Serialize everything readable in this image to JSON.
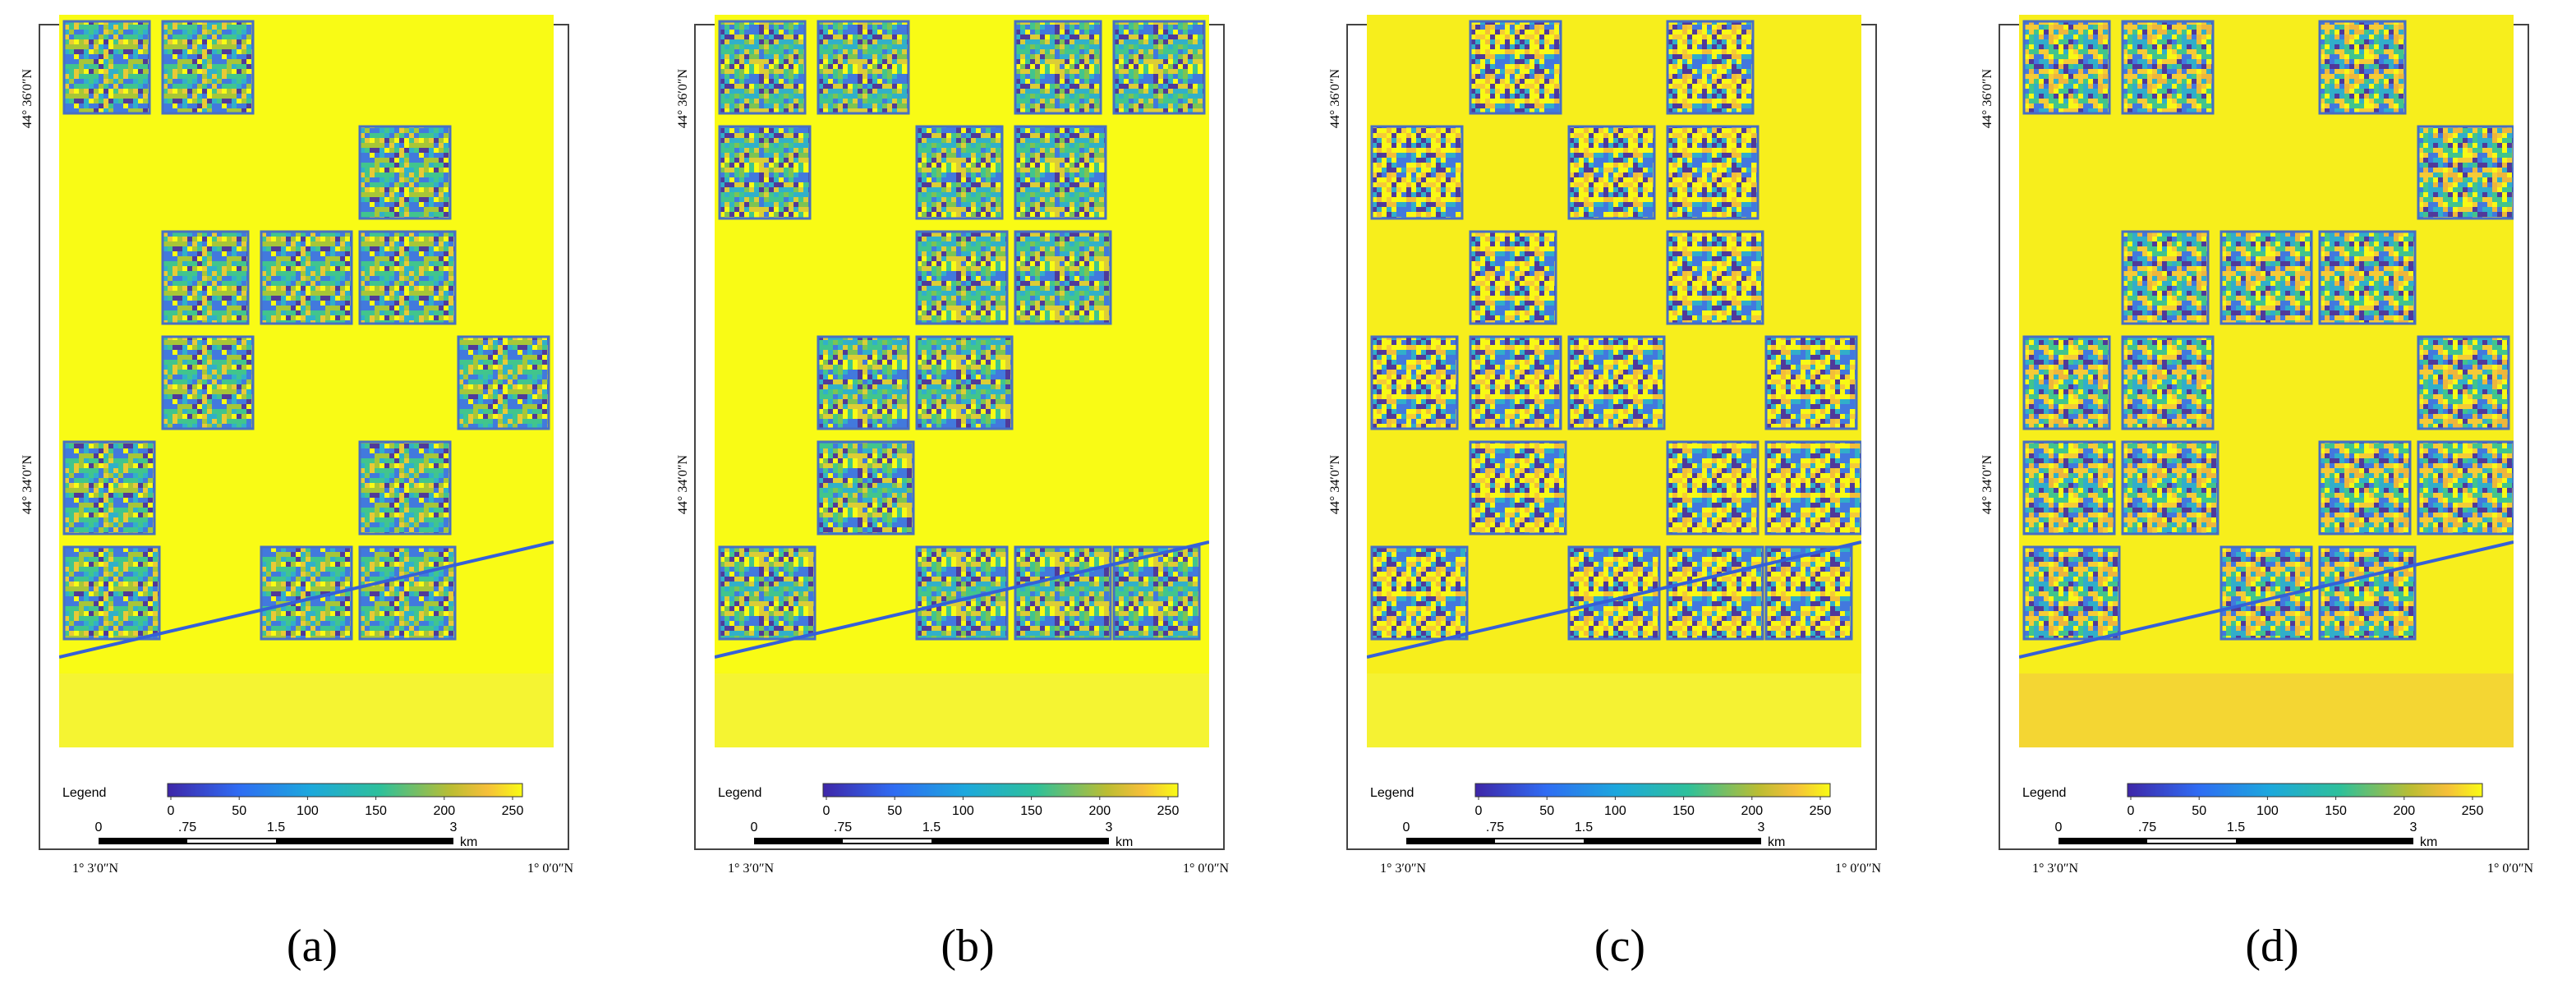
{
  "panels": [
    {
      "caption": "(a)"
    },
    {
      "caption": "(b)"
    },
    {
      "caption": "(c)"
    },
    {
      "caption": "(d)"
    }
  ],
  "map": {
    "legend_title": "Legend",
    "colorbar_ticks": [
      0,
      50,
      100,
      150,
      200,
      250
    ],
    "scale_labels": [
      "0",
      ".75",
      "1.5",
      "3"
    ],
    "scale_unit": "km",
    "lat_labels": [
      "44° 36′0″N",
      "44° 34′0″N"
    ],
    "lon_labels": [
      "1° 3′0″N",
      "1° 0′0″N"
    ]
  }
}
